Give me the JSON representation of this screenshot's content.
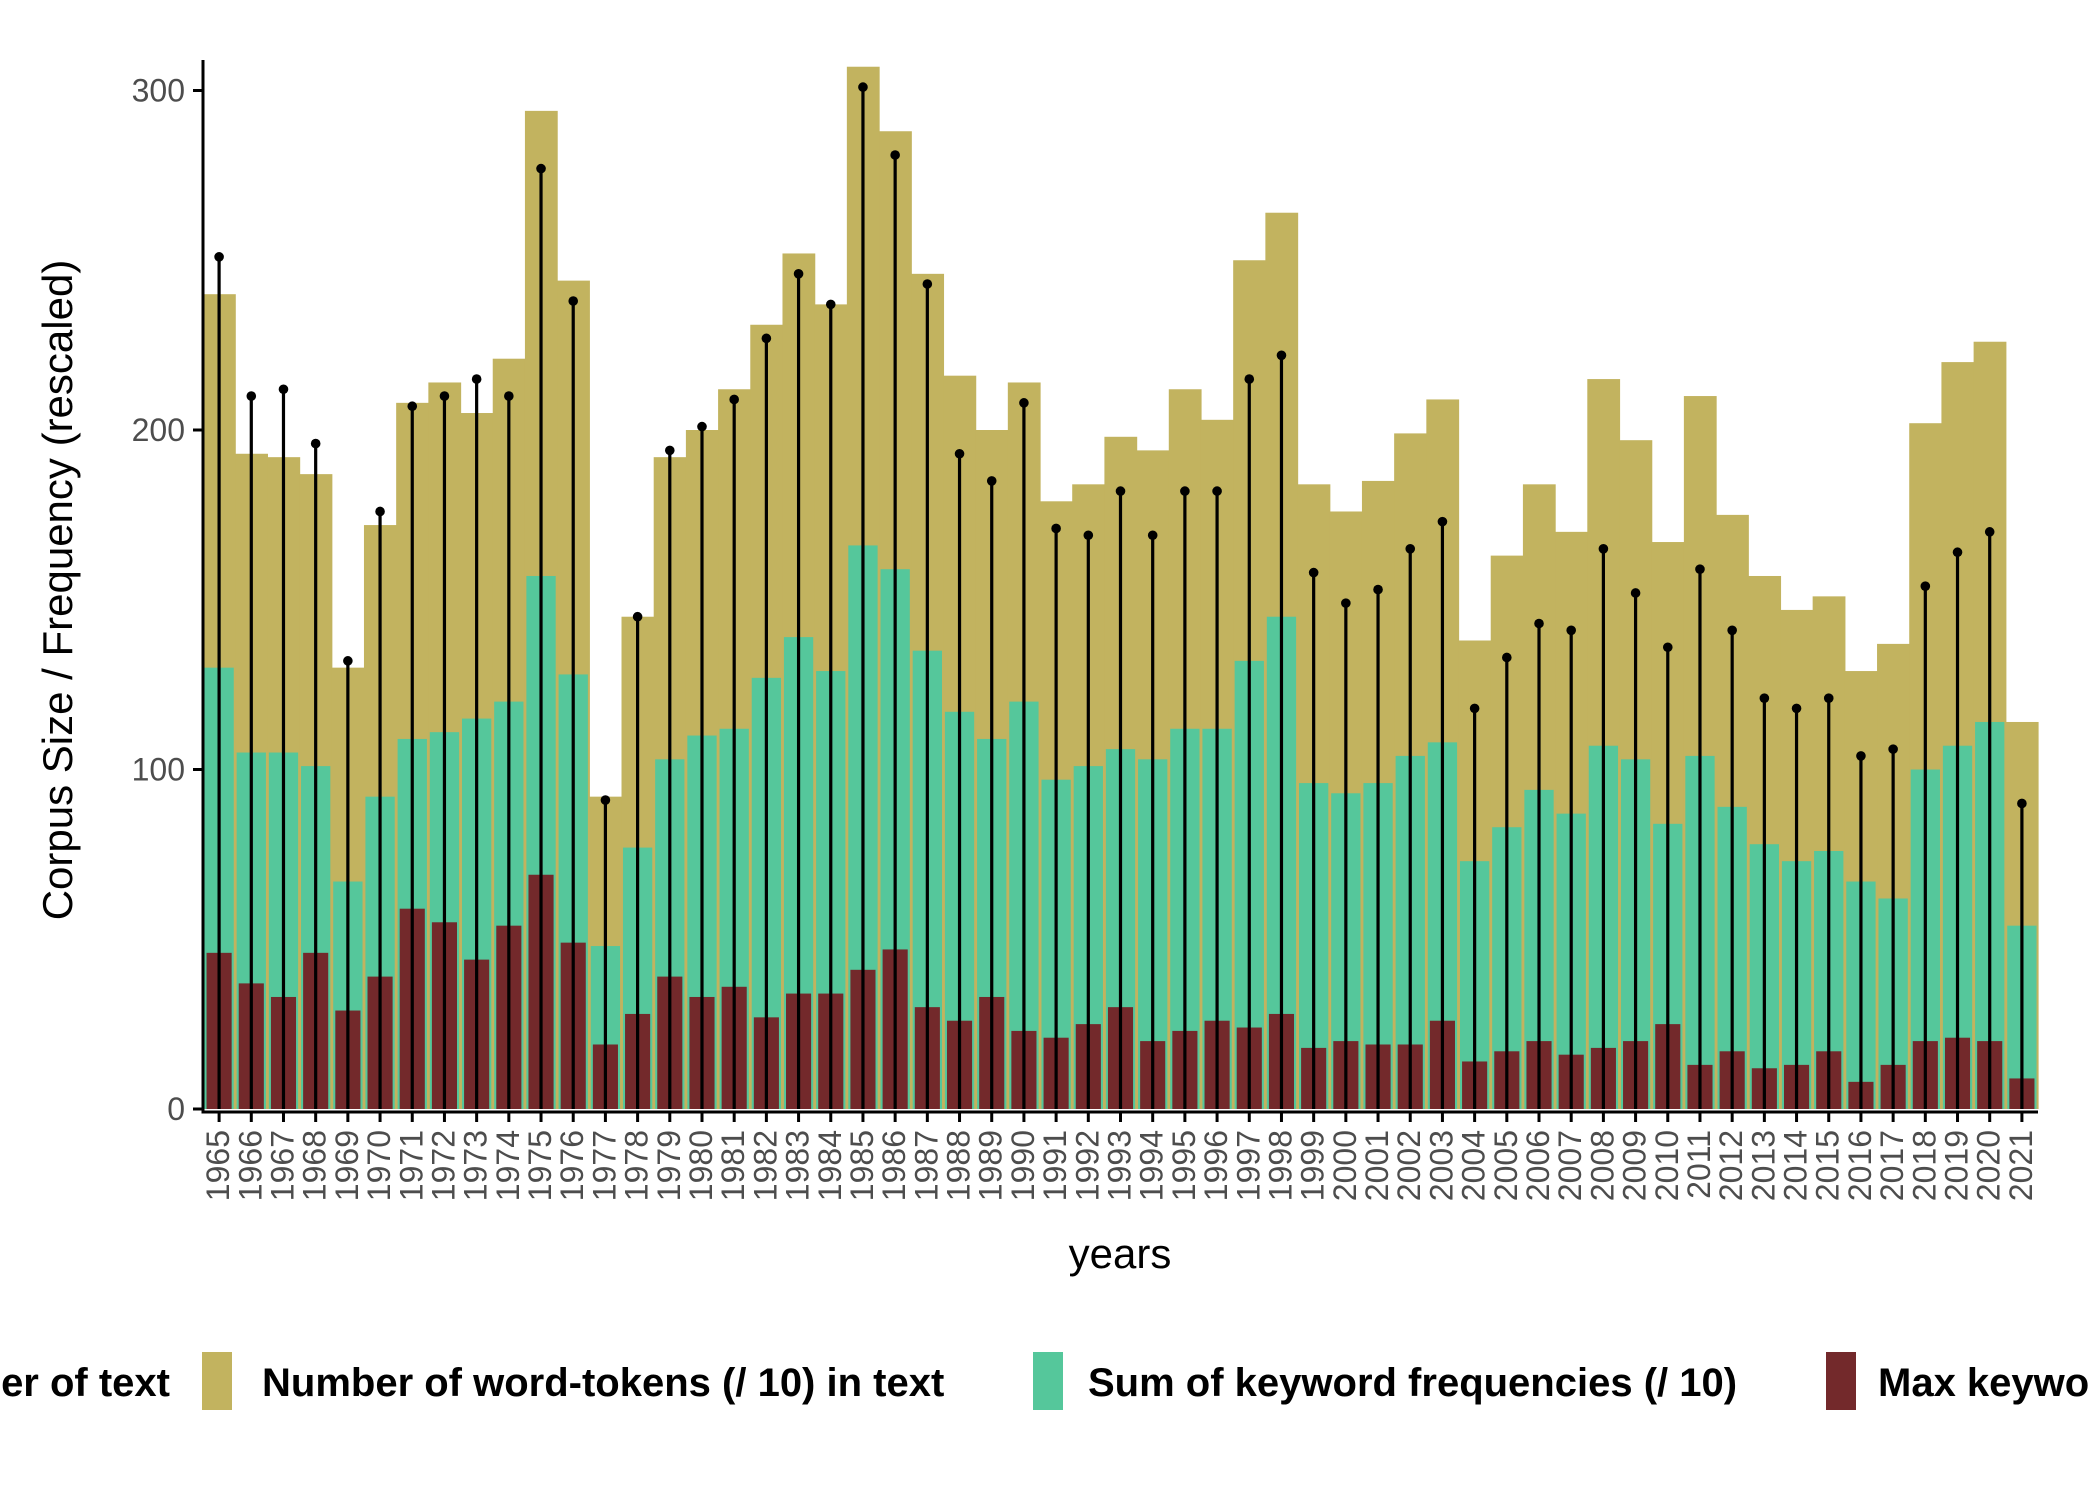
{
  "colors": {
    "tokens": "#c2b35f",
    "sum": "#55c79b",
    "max": "#73292b",
    "stem": "#000000",
    "axis": "#000000",
    "tick_text": "#4d4d4d"
  },
  "chart_data": {
    "type": "bar",
    "title": "",
    "xlabel": "years",
    "ylabel": "Corpus Size / Frequency (rescaled)",
    "ylim": [
      0,
      305
    ],
    "yticks": [
      0,
      100,
      200,
      300
    ],
    "grid": false,
    "legend_position": "bottom",
    "legend": [
      {
        "label": "er of text",
        "key": "stem"
      },
      {
        "label": "Number of word-tokens (/ 10) in text",
        "key": "tokens"
      },
      {
        "label": "Sum of keyword frequencies (/ 10)",
        "key": "sum"
      },
      {
        "label": "Max keywo",
        "key": "max"
      }
    ],
    "categories": [
      "1965",
      "1966",
      "1967",
      "1968",
      "1969",
      "1970",
      "1971",
      "1972",
      "1973",
      "1974",
      "1975",
      "1976",
      "1977",
      "1978",
      "1979",
      "1980",
      "1981",
      "1982",
      "1983",
      "1984",
      "1985",
      "1986",
      "1987",
      "1988",
      "1989",
      "1990",
      "1991",
      "1992",
      "1993",
      "1994",
      "1995",
      "1996",
      "1997",
      "1998",
      "1999",
      "2000",
      "2001",
      "2002",
      "2003",
      "2004",
      "2005",
      "2006",
      "2007",
      "2008",
      "2009",
      "2010",
      "2011",
      "2012",
      "2013",
      "2014",
      "2015",
      "2016",
      "2017",
      "2018",
      "2019",
      "2020",
      "2021"
    ],
    "series": [
      {
        "name": "Number of word-tokens (/ 10) in text",
        "key": "tokens",
        "values": [
          240,
          193,
          192,
          187,
          130,
          172,
          208,
          214,
          205,
          221,
          294,
          244,
          92,
          145,
          192,
          200,
          212,
          231,
          252,
          237,
          307,
          288,
          246,
          216,
          200,
          214,
          179,
          184,
          198,
          194,
          212,
          203,
          250,
          264,
          184,
          176,
          185,
          199,
          209,
          138,
          163,
          184,
          170,
          215,
          197,
          167,
          210,
          175,
          157,
          147,
          151,
          129,
          137,
          202,
          220,
          226,
          114
        ]
      },
      {
        "name": "Sum of keyword frequencies (/ 10)",
        "key": "sum",
        "values": [
          130,
          105,
          105,
          101,
          67,
          92,
          109,
          111,
          115,
          120,
          157,
          128,
          48,
          77,
          103,
          110,
          112,
          127,
          139,
          129,
          166,
          159,
          135,
          117,
          109,
          120,
          97,
          101,
          106,
          103,
          112,
          112,
          132,
          145,
          96,
          93,
          96,
          104,
          108,
          73,
          83,
          94,
          87,
          107,
          103,
          84,
          104,
          89,
          78,
          73,
          76,
          67,
          62,
          100,
          107,
          114,
          54
        ]
      },
      {
        "name": "Max keyword frequency",
        "key": "max",
        "values": [
          46,
          37,
          33,
          46,
          29,
          39,
          59,
          55,
          44,
          54,
          69,
          49,
          19,
          28,
          39,
          33,
          36,
          27,
          34,
          34,
          41,
          47,
          30,
          26,
          33,
          23,
          21,
          25,
          30,
          20,
          23,
          26,
          24,
          28,
          18,
          20,
          19,
          19,
          26,
          14,
          17,
          20,
          16,
          18,
          20,
          25,
          13,
          17,
          12,
          13,
          17,
          8,
          13,
          20,
          21,
          20,
          9
        ]
      },
      {
        "name": "Number of text",
        "key": "stem",
        "values": [
          251,
          210,
          212,
          196,
          132,
          176,
          207,
          210,
          215,
          210,
          277,
          238,
          91,
          145,
          194,
          201,
          209,
          227,
          246,
          237,
          301,
          281,
          243,
          193,
          185,
          208,
          171,
          169,
          182,
          169,
          182,
          182,
          215,
          222,
          158,
          149,
          153,
          165,
          173,
          118,
          133,
          143,
          141,
          165,
          152,
          136,
          159,
          141,
          121,
          118,
          121,
          104,
          106,
          154,
          164,
          170,
          90
        ]
      }
    ]
  }
}
